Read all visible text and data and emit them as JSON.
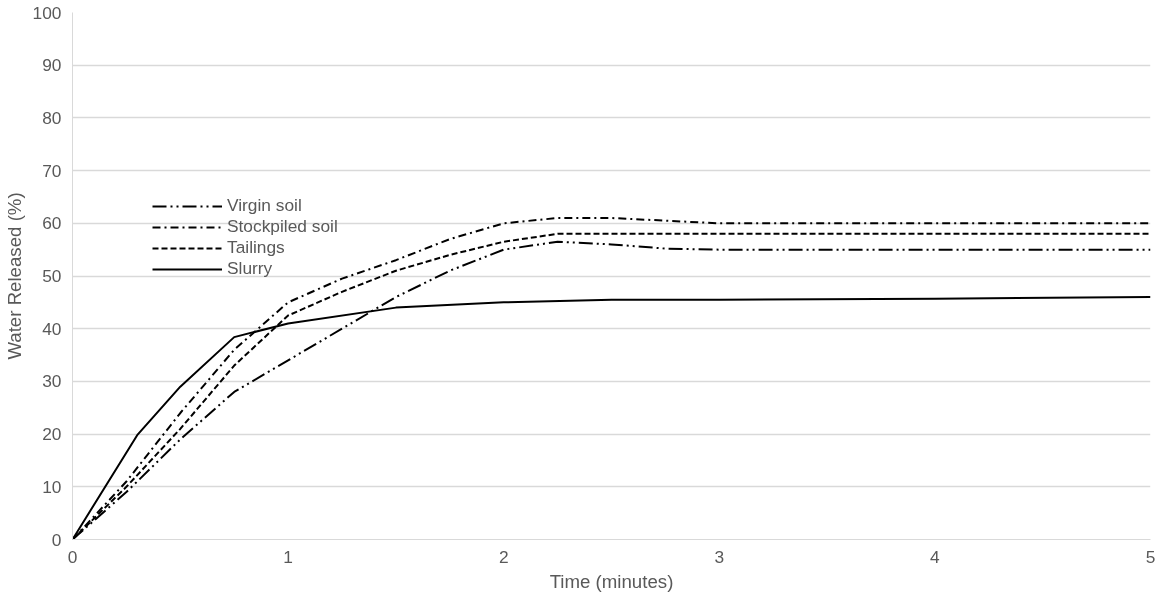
{
  "chart_data": {
    "type": "line",
    "xlabel": "Time (minutes)",
    "ylabel": "Water Released (%)",
    "xlim": [
      0,
      5
    ],
    "xticks": [
      0,
      1,
      2,
      3,
      4,
      5
    ],
    "ylim": [
      0,
      100
    ],
    "yticks": [
      0,
      10,
      20,
      30,
      40,
      50,
      60,
      70,
      80,
      90,
      100
    ],
    "grid": "y",
    "legend": "top left",
    "marker": "none",
    "series": [
      {
        "name": "Virgin soil",
        "color": "#000000",
        "line_style": "dashdotdot",
        "x": [
          0,
          0.25,
          0.5,
          0.75,
          1,
          1.25,
          1.5,
          1.75,
          2,
          2.25,
          2.5,
          2.75,
          3,
          4,
          5
        ],
        "values": [
          0,
          9,
          19,
          28,
          34,
          40,
          46,
          51,
          55,
          56.5,
          56,
          55.2,
          55,
          55,
          55
        ]
      },
      {
        "name": "Stockpiled soil",
        "color": "#000000",
        "line_style": "dashdot",
        "x": [
          0,
          0.25,
          0.5,
          0.75,
          1,
          1.25,
          1.5,
          1.75,
          2,
          2.25,
          2.5,
          3,
          4,
          5
        ],
        "values": [
          0,
          11,
          24,
          36,
          45,
          49.5,
          53,
          57,
          60,
          61,
          61,
          60,
          60,
          60
        ]
      },
      {
        "name": "Tailings",
        "color": "#000000",
        "line_style": "dashed",
        "x": [
          0,
          0.25,
          0.5,
          0.75,
          1,
          1.25,
          1.5,
          1.75,
          2,
          2.25,
          2.5,
          3,
          4,
          5
        ],
        "values": [
          0,
          10,
          21,
          33,
          42.5,
          47,
          51,
          54,
          56.5,
          58,
          58,
          58,
          58,
          58
        ]
      },
      {
        "name": "Slurry",
        "color": "#000000",
        "line_style": "solid",
        "x": [
          0,
          0.3,
          0.5,
          0.75,
          1,
          1.5,
          2,
          2.5,
          3,
          4,
          5
        ],
        "values": [
          0,
          19.8,
          29,
          38.4,
          41,
          44,
          45,
          45.5,
          45.5,
          45.7,
          46
        ]
      }
    ]
  }
}
